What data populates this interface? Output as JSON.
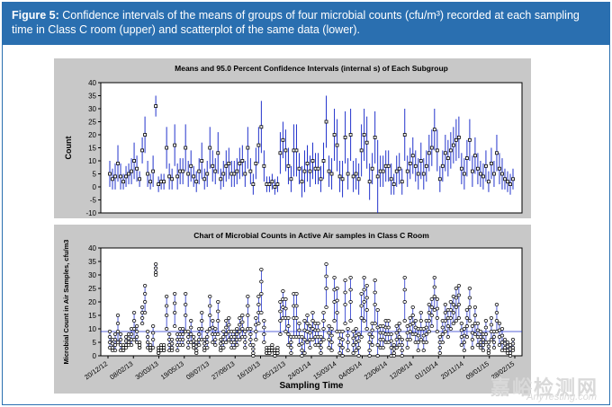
{
  "caption": {
    "label": "Figure 5:",
    "text": " Confidence intervals of the means of groups of four microbial counts (cfu/m³) recorded at each sampling time in Class C room (upper) and scatterplot of the same data (lower)."
  },
  "watermark": {
    "main": "嘉峪检测网",
    "sub": "AnyTesting.com"
  },
  "colors": {
    "series": "#2233cc",
    "panel": "#c8c8c8",
    "plot": "#ffffff",
    "caption": "#2a6fb0"
  },
  "chart_data": [
    {
      "type": "error-bar",
      "title": "Means and 95.0 Percent Confidence Intervals (internal s) of Each Subgroup",
      "xlabel": "",
      "ylabel": "Count",
      "ylim": [
        -10,
        40
      ],
      "yticks": [
        -10,
        -5,
        0,
        5,
        10,
        15,
        20,
        25,
        30,
        35,
        40
      ],
      "grid": false,
      "series": [
        {
          "name": "",
          "means": [
            5,
            3,
            4,
            9,
            4,
            2,
            4,
            5,
            6,
            10,
            7,
            3,
            14,
            20,
            5,
            2,
            6,
            31,
            1,
            2,
            2,
            15,
            4,
            3,
            16,
            4,
            6,
            6,
            15,
            5,
            8,
            4,
            2,
            6,
            10,
            3,
            5,
            15,
            8,
            6,
            13,
            3,
            5,
            8,
            9,
            5,
            5,
            6,
            9,
            10,
            5,
            15,
            6,
            1,
            9,
            16,
            23,
            8,
            1,
            1,
            2,
            0,
            1,
            13,
            18,
            14,
            8,
            3,
            14,
            14,
            7,
            2,
            6,
            9,
            6,
            10,
            7,
            7,
            3,
            10,
            25,
            6,
            5,
            20,
            16,
            4,
            3,
            19,
            5,
            20,
            4,
            5,
            3,
            14,
            20,
            17,
            2,
            7,
            19,
            4,
            6,
            6,
            8,
            8,
            3,
            1,
            6,
            7,
            2,
            20,
            6,
            9,
            12,
            8,
            5,
            10,
            5,
            8,
            13,
            15,
            22,
            14,
            3,
            8,
            13,
            11,
            14,
            16,
            18,
            19,
            7,
            5,
            11,
            18,
            6,
            12,
            7,
            5,
            4,
            8,
            2,
            9,
            5,
            13,
            7,
            5,
            3,
            2,
            1,
            3
          ],
          "lower": [
            0,
            -1,
            -1,
            2,
            -1,
            -1,
            0,
            1,
            1,
            3,
            2,
            0,
            9,
            13,
            0,
            -1,
            0,
            27,
            -2,
            -1,
            -1,
            7,
            -1,
            -1,
            8,
            -1,
            1,
            1,
            6,
            0,
            2,
            0,
            -2,
            1,
            3,
            -1,
            0,
            7,
            2,
            1,
            5,
            -1,
            0,
            2,
            3,
            0,
            0,
            1,
            3,
            4,
            0,
            7,
            1,
            -3,
            3,
            9,
            13,
            2,
            -2,
            -2,
            -1,
            -3,
            -2,
            5,
            11,
            6,
            1,
            -2,
            4,
            4,
            1,
            -4,
            -2,
            2,
            0,
            3,
            1,
            1,
            -2,
            3,
            15,
            0,
            -1,
            10,
            6,
            -2,
            -4,
            9,
            -1,
            10,
            -2,
            -1,
            -3,
            4,
            10,
            7,
            -5,
            1,
            9,
            -10,
            0,
            0,
            2,
            2,
            -3,
            -3,
            0,
            1,
            -3,
            10,
            0,
            3,
            5,
            2,
            -1,
            3,
            -1,
            2,
            6,
            8,
            14,
            6,
            -2,
            2,
            6,
            4,
            7,
            9,
            10,
            11,
            1,
            -1,
            4,
            10,
            0,
            5,
            1,
            0,
            -1,
            2,
            -2,
            3,
            0,
            6,
            1,
            -1,
            -1,
            -2,
            -3,
            -1
          ],
          "upper": [
            10,
            7,
            9,
            16,
            9,
            5,
            8,
            9,
            11,
            17,
            12,
            6,
            19,
            27,
            10,
            5,
            12,
            35,
            4,
            5,
            5,
            23,
            9,
            7,
            24,
            9,
            11,
            11,
            24,
            10,
            14,
            8,
            6,
            11,
            17,
            7,
            10,
            23,
            14,
            11,
            21,
            7,
            10,
            14,
            15,
            10,
            10,
            11,
            15,
            16,
            10,
            23,
            11,
            5,
            15,
            23,
            33,
            14,
            4,
            4,
            5,
            3,
            4,
            21,
            25,
            22,
            15,
            8,
            24,
            24,
            13,
            8,
            14,
            16,
            12,
            17,
            13,
            13,
            8,
            17,
            35,
            12,
            11,
            30,
            26,
            10,
            10,
            29,
            11,
            30,
            10,
            11,
            9,
            24,
            30,
            27,
            9,
            13,
            29,
            18,
            12,
            12,
            14,
            14,
            9,
            5,
            12,
            13,
            7,
            30,
            12,
            15,
            19,
            14,
            11,
            17,
            11,
            14,
            20,
            22,
            30,
            22,
            8,
            14,
            20,
            18,
            21,
            23,
            26,
            27,
            13,
            11,
            18,
            26,
            12,
            19,
            13,
            10,
            9,
            14,
            6,
            15,
            10,
            20,
            13,
            11,
            7,
            6,
            5,
            7
          ]
        }
      ]
    },
    {
      "type": "scatter",
      "title": "Chart of Microbial Counts in Active Air samples in Class C Room",
      "xlabel": "Sampling Time",
      "ylabel": "Microbial Count in Air Samples, cfu/m3",
      "ylim": [
        0,
        40
      ],
      "yticks": [
        0,
        5,
        10,
        15,
        20,
        25,
        30,
        35,
        40
      ],
      "xticks": [
        "20/12/12",
        "08/02/13",
        "30/03/13",
        "19/05/13",
        "08/07/13",
        "27/08/13",
        "16/10/13",
        "05/12/13",
        "24/01/14",
        "15/03/14",
        "04/05/14",
        "23/06/14",
        "12/08/14",
        "01/10/14",
        "20/11/14",
        "09/01/15",
        "28/02/15"
      ],
      "reference_line": 9,
      "grid": false
    }
  ]
}
